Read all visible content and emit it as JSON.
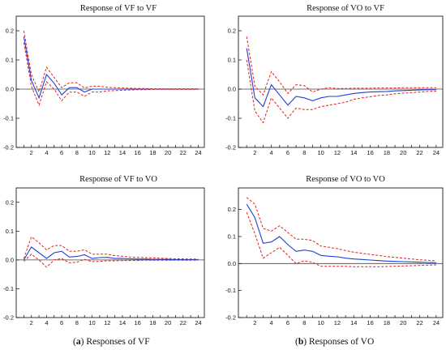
{
  "captions": {
    "a_label": "a",
    "a_text": "Responses of VF",
    "b_label": "b",
    "b_text": "Responses of VO"
  },
  "colors": {
    "response": "#1f3fd8",
    "band": "#e3201b",
    "axis": "#000000",
    "zero": "#444444"
  },
  "chart_data": [
    {
      "type": "line",
      "title": "Response of VF to VF",
      "ylim": [
        -0.2,
        0.25
      ],
      "yticks": [
        "-0.2",
        "-0.1",
        "0.0",
        "0.1",
        "0.2"
      ],
      "xticks": [
        "2",
        "4",
        "6",
        "8",
        "10",
        "12",
        "14",
        "16",
        "18",
        "20",
        "22",
        "24"
      ],
      "x": [
        1,
        2,
        3,
        4,
        5,
        6,
        7,
        8,
        9,
        10,
        11,
        12,
        13,
        14,
        15,
        16,
        17,
        18,
        19,
        20,
        21,
        22,
        23,
        24
      ],
      "series": [
        {
          "values": [
            0.18,
            0.03,
            -0.03,
            0.05,
            0.02,
            -0.02,
            0.005,
            0.005,
            -0.01,
            0,
            0,
            0,
            0,
            0,
            0,
            0,
            0,
            0,
            0,
            0,
            0,
            0,
            0,
            0
          ]
        },
        {
          "values": [
            0.2,
            0.05,
            -0.01,
            0.075,
            0.04,
            0.005,
            0.022,
            0.022,
            0.004,
            0.01,
            0.01,
            0.006,
            0.005,
            0.004,
            0.003,
            0.002,
            0.002,
            0.001,
            0.001,
            0.001,
            0.001,
            0.001,
            0.001,
            0.001
          ]
        },
        {
          "values": [
            0.16,
            0.01,
            -0.055,
            0.025,
            0.0,
            -0.04,
            -0.01,
            -0.01,
            -0.025,
            -0.01,
            -0.01,
            -0.006,
            -0.005,
            -0.004,
            -0.003,
            -0.002,
            -0.002,
            -0.001,
            -0.001,
            -0.001,
            -0.001,
            -0.001,
            -0.001,
            -0.001
          ]
        }
      ]
    },
    {
      "type": "line",
      "title": "Response of VO to VF",
      "ylim": [
        -0.2,
        0.25
      ],
      "yticks": [
        "-0.2",
        "-0.1",
        "0.0",
        "0.1",
        "0.2"
      ],
      "xticks": [
        "2",
        "4",
        "6",
        "8",
        "10",
        "12",
        "14",
        "16",
        "18",
        "20",
        "22",
        "24"
      ],
      "x": [
        1,
        2,
        3,
        4,
        5,
        6,
        7,
        8,
        9,
        10,
        11,
        12,
        13,
        14,
        15,
        16,
        17,
        18,
        19,
        20,
        21,
        22,
        23,
        24
      ],
      "series": [
        {
          "values": [
            0.14,
            -0.03,
            -0.06,
            0.015,
            -0.02,
            -0.055,
            -0.025,
            -0.03,
            -0.04,
            -0.03,
            -0.025,
            -0.025,
            -0.02,
            -0.015,
            -0.012,
            -0.01,
            -0.009,
            -0.008,
            -0.006,
            -0.005,
            -0.004,
            -0.003,
            -0.002,
            -0.002
          ]
        },
        {
          "values": [
            0.18,
            0.01,
            -0.02,
            0.06,
            0.025,
            -0.015,
            0.015,
            0.012,
            -0.01,
            0.0,
            0.005,
            0.002,
            0.002,
            0.003,
            0.003,
            0.003,
            0.004,
            0.004,
            0.004,
            0.005,
            0.005,
            0.005,
            0.005,
            0.005
          ]
        },
        {
          "values": [
            0.1,
            -0.075,
            -0.115,
            -0.03,
            -0.065,
            -0.1,
            -0.065,
            -0.07,
            -0.07,
            -0.06,
            -0.055,
            -0.05,
            -0.045,
            -0.035,
            -0.03,
            -0.026,
            -0.022,
            -0.02,
            -0.016,
            -0.014,
            -0.012,
            -0.01,
            -0.008,
            -0.007
          ]
        }
      ]
    },
    {
      "type": "line",
      "title": "Response of VF to VO",
      "ylim": [
        -0.2,
        0.25
      ],
      "yticks": [
        "-0.2",
        "-0.1",
        "0.0",
        "0.1",
        "0.2"
      ],
      "xticks": [
        "2",
        "4",
        "6",
        "8",
        "10",
        "12",
        "14",
        "16",
        "18",
        "20",
        "22",
        "24"
      ],
      "x": [
        1,
        2,
        3,
        4,
        5,
        6,
        7,
        8,
        9,
        10,
        11,
        12,
        13,
        14,
        15,
        16,
        17,
        18,
        19,
        20,
        21,
        22,
        23,
        24
      ],
      "series": [
        {
          "values": [
            0.0,
            0.045,
            0.025,
            0.005,
            0.025,
            0.03,
            0.01,
            0.012,
            0.018,
            0.005,
            0.008,
            0.009,
            0.005,
            0.005,
            0.004,
            0.003,
            0.003,
            0.002,
            0.002,
            0.002,
            0.001,
            0.001,
            0.001,
            0.001
          ]
        },
        {
          "values": [
            0.005,
            0.08,
            0.06,
            0.035,
            0.05,
            0.05,
            0.03,
            0.03,
            0.035,
            0.02,
            0.02,
            0.02,
            0.015,
            0.013,
            0.01,
            0.009,
            0.008,
            0.007,
            0.006,
            0.005,
            0.004,
            0.004,
            0.003,
            0.003
          ]
        },
        {
          "values": [
            -0.005,
            0.02,
            0.0,
            -0.025,
            0.0,
            0.005,
            -0.01,
            -0.008,
            0.002,
            -0.006,
            -0.005,
            -0.003,
            -0.003,
            -0.002,
            -0.002,
            -0.002,
            -0.001,
            -0.001,
            -0.001,
            -0.001,
            -0.001,
            -0.001,
            -0.001,
            -0.001
          ]
        }
      ]
    },
    {
      "type": "line",
      "title": "Response of VO to VO",
      "ylim": [
        -0.2,
        0.28
      ],
      "yticks": [
        "-0.2",
        "-0.1",
        "0.0",
        "0.1",
        "0.2"
      ],
      "xticks": [
        "2",
        "4",
        "6",
        "8",
        "10",
        "12",
        "14",
        "16",
        "18",
        "20",
        "22",
        "24"
      ],
      "x": [
        1,
        2,
        3,
        4,
        5,
        6,
        7,
        8,
        9,
        10,
        11,
        12,
        13,
        14,
        15,
        16,
        17,
        18,
        19,
        20,
        21,
        22,
        23,
        24
      ],
      "series": [
        {
          "values": [
            0.22,
            0.17,
            0.075,
            0.08,
            0.1,
            0.07,
            0.045,
            0.05,
            0.045,
            0.03,
            0.027,
            0.025,
            0.02,
            0.017,
            0.015,
            0.013,
            0.011,
            0.009,
            0.008,
            0.007,
            0.006,
            0.005,
            0.004,
            0.003
          ]
        },
        {
          "values": [
            0.245,
            0.22,
            0.13,
            0.12,
            0.14,
            0.115,
            0.09,
            0.09,
            0.085,
            0.065,
            0.06,
            0.055,
            0.048,
            0.042,
            0.038,
            0.034,
            0.03,
            0.026,
            0.023,
            0.02,
            0.017,
            0.014,
            0.012,
            0.01
          ]
        },
        {
          "values": [
            0.19,
            0.11,
            0.02,
            0.04,
            0.06,
            0.03,
            0.0,
            0.01,
            0.005,
            -0.01,
            -0.01,
            -0.01,
            -0.01,
            -0.012,
            -0.012,
            -0.012,
            -0.012,
            -0.011,
            -0.01,
            -0.009,
            -0.008,
            -0.007,
            -0.006,
            -0.005
          ]
        }
      ]
    }
  ]
}
